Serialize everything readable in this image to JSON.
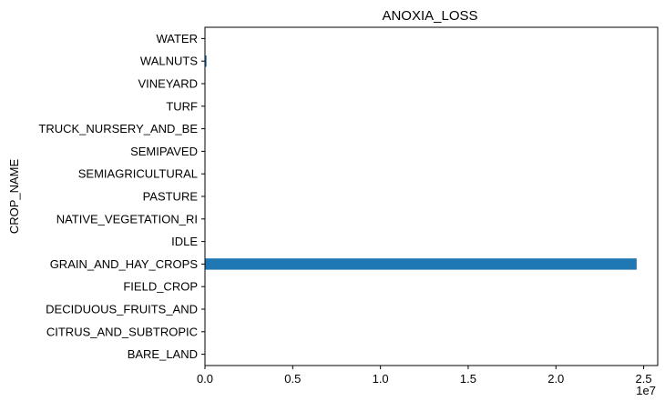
{
  "chart_data": {
    "type": "bar",
    "orientation": "horizontal",
    "title": "ANOXIA_LOSS",
    "xlabel": "",
    "ylabel": "CROP_NAME",
    "x_offset_label": "1e7",
    "xlim": [
      0,
      25800000
    ],
    "xticks": [
      0,
      5000000,
      10000000,
      15000000,
      20000000,
      25000000
    ],
    "xtick_labels": [
      "0.0",
      "0.5",
      "1.0",
      "1.5",
      "2.0",
      "2.5"
    ],
    "categories": [
      "BARE_LAND",
      "CITRUS_AND_SUBTROPIC",
      "DECIDUOUS_FRUITS_AND",
      "FIELD_CROP",
      "GRAIN_AND_HAY_CROPS",
      "IDLE",
      "NATIVE_VEGETATION_RI",
      "PASTURE",
      "SEMIAGRICULTURAL",
      "SEMIPAVED",
      "TRUCK_NURSERY_AND_BE",
      "TURF",
      "VINEYARD",
      "WALNUTS",
      "WATER"
    ],
    "values": [
      0,
      0,
      0,
      0,
      24600000,
      0,
      0,
      0,
      0,
      0,
      0,
      0,
      0,
      90000,
      0
    ],
    "bar_color": "#1f77b4",
    "grid": false,
    "legend": false
  }
}
